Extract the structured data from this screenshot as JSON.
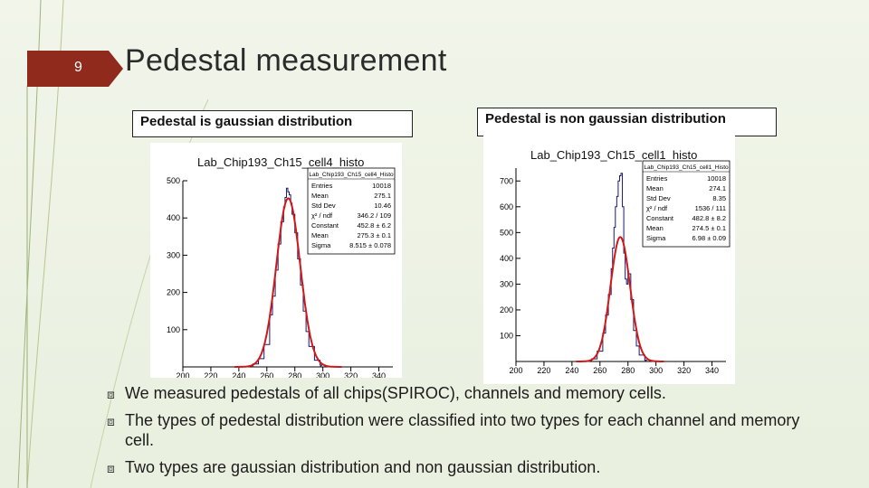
{
  "slide": {
    "number": "9",
    "title": "Pedestal measurement"
  },
  "captions": {
    "left": "Pedestal is gaussian distribution",
    "right": "Pedestal is non gaussian distribution"
  },
  "bullets": [
    "We measured pedestals of all chips(SPIROC), channels and memory cells.",
    "The types of pedestal distribution were classified into two types for each channel and memory cell.",
    "Two types are gaussian distribution and non gaussian distribution."
  ],
  "colors": {
    "accent": "#8f2a1c",
    "fit": "#d01818",
    "histo": "#1a1a6e"
  },
  "chart_data": [
    {
      "type": "line",
      "title": "Lab_Chip193_Ch15_cell4_histo",
      "xlim": [
        200,
        350
      ],
      "ylim": [
        0,
        500
      ],
      "xticks": [
        "200",
        "220",
        "240",
        "260",
        "280",
        "300",
        "320",
        "340"
      ],
      "yticks": [
        "500",
        "400",
        "300",
        "200",
        "100"
      ],
      "stats_box": {
        "title": "Lab_Chip193_Ch15_cell4_Histo",
        "rows": [
          [
            "Entries",
            "10018"
          ],
          [
            "Mean",
            "275.1"
          ],
          [
            "Std Dev",
            "10.46"
          ],
          [
            "χ² / ndf",
            "346.2 / 109"
          ],
          [
            "Constant",
            "452.8 ± 6.2"
          ],
          [
            "Mean",
            "275.3 ± 0.1"
          ],
          [
            "Sigma",
            "8.515 ± 0.078"
          ]
        ]
      },
      "fit": {
        "constant": 452.8,
        "mean": 275.3,
        "sigma": 8.515
      },
      "series": [
        {
          "x": [
            250,
            254,
            258,
            262,
            264,
            266,
            268,
            270,
            272,
            273,
            274,
            275,
            276,
            277,
            278,
            280,
            282,
            284,
            286,
            288,
            290,
            294,
            298
          ],
          "y": [
            8,
            22,
            60,
            140,
            190,
            260,
            330,
            390,
            430,
            455,
            480,
            470,
            462,
            440,
            410,
            360,
            290,
            220,
            150,
            95,
            55,
            18,
            5
          ]
        }
      ]
    },
    {
      "type": "line",
      "title": "Lab_Chip193_Ch15_cell1_histo",
      "xlim": [
        200,
        350
      ],
      "ylim": [
        0,
        750
      ],
      "xticks": [
        "200",
        "220",
        "240",
        "260",
        "280",
        "300",
        "320",
        "340"
      ],
      "yticks": [
        "700",
        "600",
        "500",
        "400",
        "300",
        "200",
        "100"
      ],
      "stats_box": {
        "title": "Lab_Chip193_Ch15_cell1_Histo",
        "rows": [
          [
            "Entries",
            "10018"
          ],
          [
            "Mean",
            "274.1"
          ],
          [
            "Std Dev",
            "8.35"
          ],
          [
            "χ² / ndf",
            "1536 / 111"
          ],
          [
            "Constant",
            "482.8 ± 8.2"
          ],
          [
            "Mean",
            "274.5 ± 0.1"
          ],
          [
            "Sigma",
            "6.98 ± 0.09"
          ]
        ]
      },
      "fit": {
        "constant": 482.8,
        "mean": 274.5,
        "sigma": 6.98
      },
      "series": [
        {
          "x": [
            254,
            258,
            262,
            264,
            266,
            268,
            269,
            270,
            271,
            272,
            273,
            274,
            275,
            276,
            277,
            278,
            279,
            280,
            282,
            284,
            286,
            288,
            292
          ],
          "y": [
            10,
            40,
            110,
            180,
            260,
            360,
            440,
            520,
            600,
            640,
            700,
            720,
            730,
            600,
            420,
            320,
            300,
            340,
            240,
            120,
            60,
            25,
            5
          ]
        }
      ]
    }
  ]
}
